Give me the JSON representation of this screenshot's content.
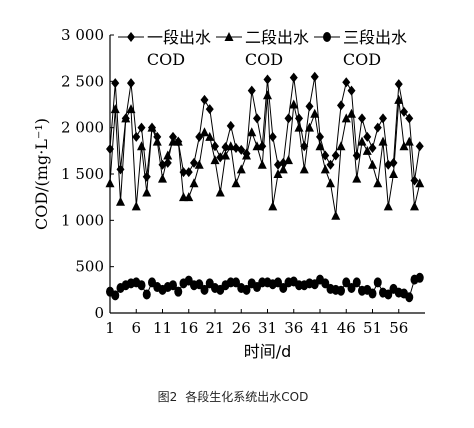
{
  "chart_data": {
    "type": "line",
    "ylabel": "COD/(mg·L⁻¹)",
    "xlabel": "时间/d",
    "ylim": [
      0,
      3000
    ],
    "y_ticks": [
      "0",
      "500",
      "1 000",
      "1 500",
      "2 000",
      "2 500",
      "3 000"
    ],
    "y_tick_values": [
      0,
      500,
      1000,
      1500,
      2000,
      2500,
      3000
    ],
    "xlim": [
      1,
      61
    ],
    "x_ticks": [
      "1",
      "6",
      "11",
      "16",
      "21",
      "26",
      "31",
      "36",
      "41",
      "46",
      "51",
      "56"
    ],
    "x_tick_values": [
      1,
      6,
      11,
      16,
      21,
      26,
      31,
      36,
      41,
      46,
      51,
      56
    ],
    "legend_position": "top",
    "x": [
      1,
      2,
      3,
      4,
      5,
      6,
      7,
      8,
      9,
      10,
      11,
      12,
      13,
      14,
      15,
      16,
      17,
      18,
      19,
      20,
      21,
      22,
      23,
      24,
      25,
      26,
      27,
      28,
      29,
      30,
      31,
      32,
      33,
      34,
      35,
      36,
      37,
      38,
      39,
      40,
      41,
      42,
      43,
      44,
      45,
      46,
      47,
      48,
      49,
      50,
      51,
      52,
      53,
      54,
      55,
      56,
      57,
      58,
      59,
      60
    ],
    "series": [
      {
        "name_lines": [
          "一段出水",
          "COD"
        ],
        "marker": "diamond",
        "values": [
          1770,
          2480,
          1550,
          2100,
          2480,
          1900,
          2000,
          1470,
          2000,
          1900,
          1600,
          1620,
          1900,
          1850,
          1520,
          1520,
          1620,
          1900,
          2300,
          2200,
          1800,
          1680,
          1790,
          2020,
          1780,
          1760,
          1720,
          2400,
          2100,
          1800,
          2520,
          1900,
          1600,
          1620,
          2100,
          2540,
          2100,
          1800,
          2230,
          2550,
          1900,
          1700,
          1600,
          1700,
          2240,
          2490,
          2400,
          1700,
          2100,
          1900,
          1780,
          2000,
          2100,
          1600,
          1620,
          2470,
          2170,
          2100,
          1430,
          1800
        ]
      },
      {
        "name_lines": [
          "二段出水",
          "COD"
        ],
        "marker": "triangle",
        "values": [
          1400,
          2200,
          1200,
          2100,
          2200,
          1150,
          1800,
          1300,
          2000,
          1850,
          1450,
          1700,
          1850,
          1850,
          1250,
          1250,
          1400,
          1600,
          1950,
          1900,
          1650,
          1300,
          1700,
          1800,
          1400,
          1550,
          1700,
          1950,
          1800,
          1600,
          2350,
          1150,
          1500,
          1550,
          1650,
          2250,
          2000,
          1550,
          2000,
          2150,
          1800,
          1550,
          1400,
          1050,
          1800,
          2100,
          2150,
          1450,
          1850,
          1750,
          1600,
          1400,
          1850,
          1150,
          1500,
          2300,
          1800,
          1850,
          1150,
          1400
        ]
      },
      {
        "name_lines": [
          "三段出水",
          "COD"
        ],
        "marker": "circle",
        "values": [
          230,
          190,
          270,
          300,
          320,
          330,
          300,
          200,
          330,
          280,
          250,
          280,
          300,
          230,
          320,
          350,
          300,
          310,
          250,
          320,
          270,
          250,
          300,
          330,
          330,
          270,
          250,
          320,
          280,
          330,
          330,
          310,
          330,
          270,
          330,
          340,
          300,
          300,
          320,
          310,
          360,
          320,
          260,
          250,
          240,
          330,
          270,
          330,
          240,
          250,
          210,
          330,
          220,
          200,
          260,
          220,
          210,
          170,
          360,
          380
        ]
      }
    ],
    "caption_label": "图2",
    "caption_text": "各段生化系统出水COD"
  }
}
